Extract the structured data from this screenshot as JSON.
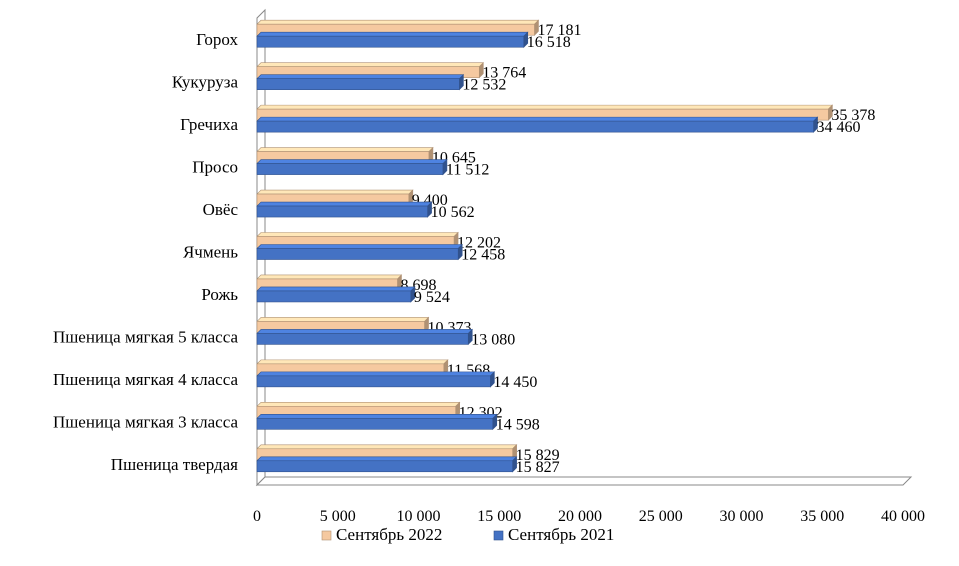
{
  "chart_data": {
    "type": "bar",
    "orientation": "horizontal",
    "categories": [
      "Горох",
      "Кукуруза",
      "Гречиха",
      "Просо",
      "Овёс",
      "Ячмень",
      "Рожь",
      "Пшеница мягкая 5 класса",
      "Пшеница мягкая 4 класса",
      "Пшеница мягкая 3 класса",
      "Пшеница твердая"
    ],
    "series": [
      {
        "name": "Сентябрь 2022",
        "color": "#F5C9A0",
        "values": [
          17181,
          13764,
          35378,
          10645,
          9400,
          12202,
          8698,
          10373,
          11568,
          12302,
          15829
        ],
        "value_labels": [
          "17 181",
          "13 764",
          "35 378",
          "10 645",
          "9 400",
          "12 202",
          "8 698",
          "10 373",
          "11 568",
          "12 302",
          "15 829"
        ]
      },
      {
        "name": "Сентябрь 2021",
        "color": "#4472C4",
        "values": [
          16518,
          12532,
          34460,
          11512,
          10562,
          12458,
          9524,
          13080,
          14450,
          14598,
          15827
        ],
        "value_labels": [
          "16 518",
          "12 532",
          "34 460",
          "11 512",
          "10 562",
          "12 458",
          "9 524",
          "13 080",
          "14 450",
          "14 598",
          "15 827"
        ]
      }
    ],
    "x_ticks": [
      0,
      5000,
      10000,
      15000,
      20000,
      25000,
      30000,
      35000,
      40000
    ],
    "x_tick_labels": [
      "0",
      "5 000",
      "10 000",
      "15 000",
      "20 000",
      "25 000",
      "30 000",
      "35 000",
      "40 000"
    ],
    "xlim": [
      0,
      40000
    ],
    "grid": false,
    "legend_position": "bottom",
    "title": "",
    "xlabel": "",
    "ylabel": ""
  }
}
